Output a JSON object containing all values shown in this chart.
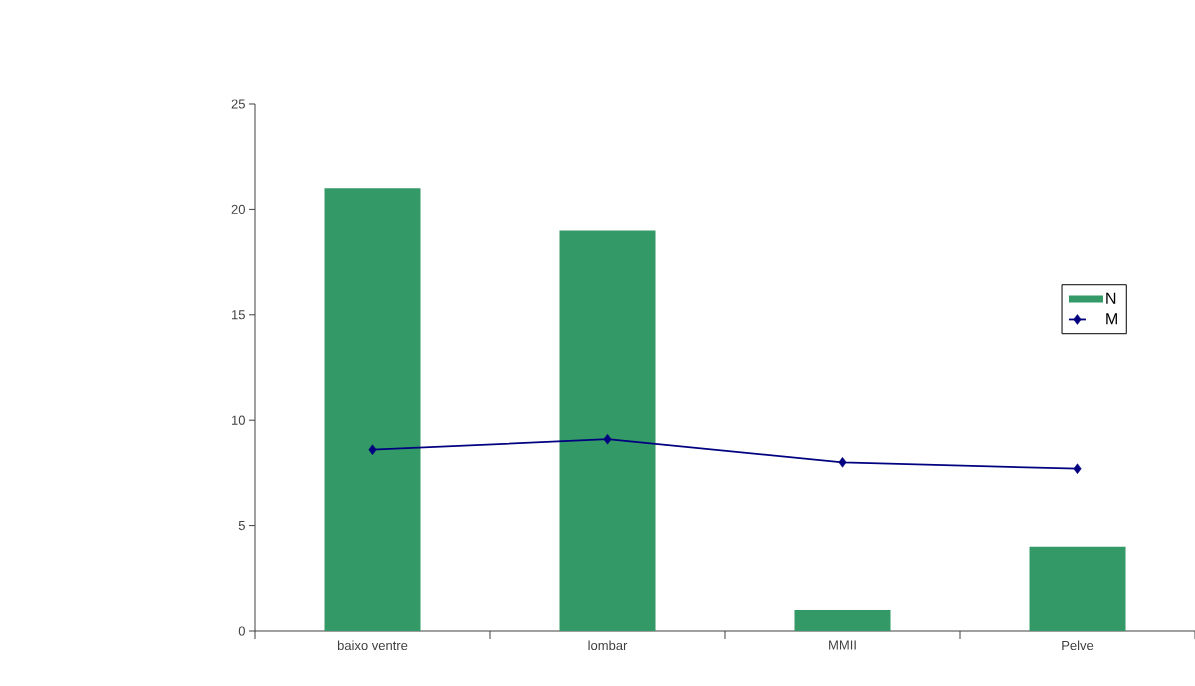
{
  "chart_data": {
    "type": "bar",
    "categories": [
      "baixo ventre",
      "lombar",
      "MMII",
      "Pelve"
    ],
    "series": [
      {
        "name": "N",
        "color": "#339966",
        "values": [
          21,
          19,
          1,
          4
        ]
      },
      {
        "name": "M",
        "type": "line",
        "color": "#000080",
        "marker": "diamond",
        "values": [
          8.6,
          9.1,
          8.0,
          7.7
        ]
      }
    ],
    "ylim": [
      0,
      25
    ],
    "yticks": [
      0,
      5,
      10,
      15,
      20,
      25
    ],
    "grid": false,
    "legend": "right"
  }
}
